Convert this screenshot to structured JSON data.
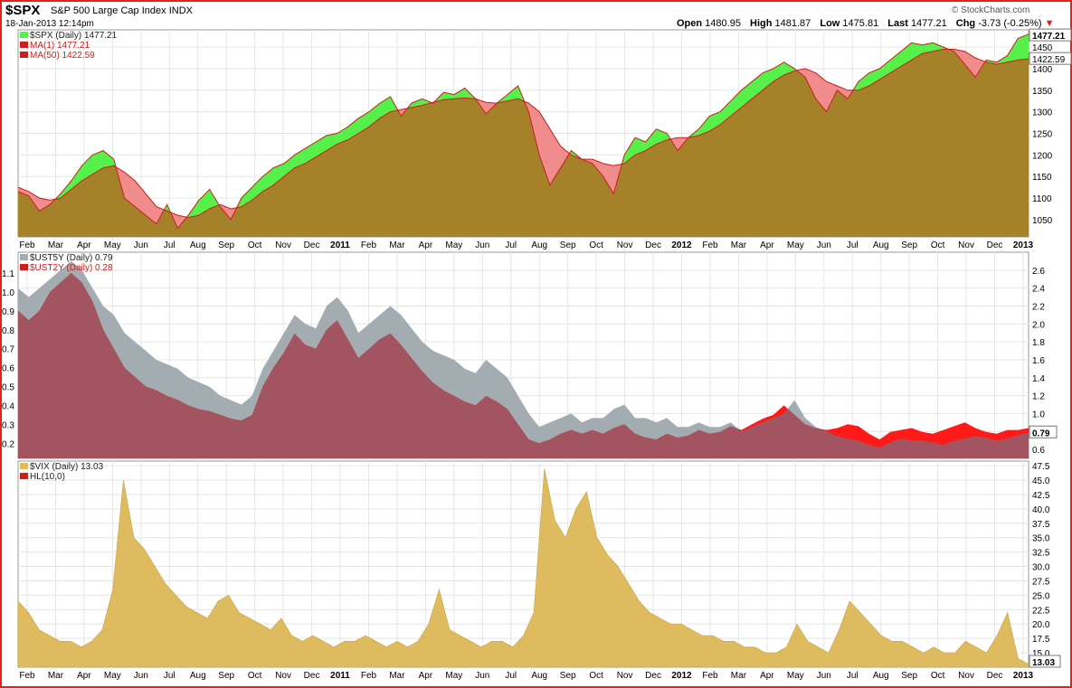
{
  "header": {
    "symbol": "$SPX",
    "name": "S&P 500 Large Cap Index",
    "exchange": "INDX",
    "datetime": "18-Jan-2013 12:14pm",
    "brand": "© StockCharts.com",
    "quote": {
      "open_label": "Open",
      "open": "1480.95",
      "high_label": "High",
      "high": "1481.87",
      "low_label": "Low",
      "low": "1475.81",
      "last_label": "Last",
      "last": "1477.21",
      "chg_label": "Chg",
      "chg": "-3.73 (-0.25%)"
    }
  },
  "months": [
    "Feb",
    "Mar",
    "Apr",
    "May",
    "Jun",
    "Jul",
    "Aug",
    "Sep",
    "Oct",
    "Nov",
    "Dec",
    "2011",
    "Feb",
    "Mar",
    "Apr",
    "May",
    "Jun",
    "Jul",
    "Aug",
    "Sep",
    "Oct",
    "Nov",
    "Dec",
    "2012",
    "Feb",
    "Mar",
    "Apr",
    "May",
    "Jun",
    "Jul",
    "Aug",
    "Sep",
    "Oct",
    "Nov",
    "Dec",
    "2013"
  ],
  "colors": {
    "price_fill": "#a5822a",
    "above": "#55f04a",
    "below": "#f08c8c",
    "ust5": "#a3acb0",
    "ust2": "#a25560",
    "ust2_excess": "#ff1a1a",
    "vix": "#dfbb5f",
    "line": "#c8201c"
  },
  "chart_data": [
    {
      "type": "area",
      "title": "$SPX (Daily) 1477.21",
      "legend": [
        {
          "label": "$SPX (Daily) 1477.21",
          "color": "#55f04a"
        },
        {
          "label": "MA(1) 1477.21",
          "color": "#c8201c"
        },
        {
          "label": "MA(50) 1422.59",
          "color": "#c8201c"
        }
      ],
      "ylim": [
        1010,
        1490
      ],
      "yticks": [
        1050,
        1100,
        1150,
        1200,
        1250,
        1300,
        1350,
        1400,
        1450
      ],
      "last_labels": [
        {
          "text": "1477.21",
          "value": 1477.21,
          "bold": true
        },
        {
          "text": "1422.59",
          "value": 1422.59,
          "bold": false
        }
      ],
      "series": [
        {
          "name": "$SPX",
          "values": [
            1115,
            1105,
            1070,
            1085,
            1110,
            1140,
            1175,
            1200,
            1210,
            1190,
            1100,
            1080,
            1060,
            1040,
            1085,
            1030,
            1060,
            1095,
            1120,
            1080,
            1050,
            1100,
            1125,
            1150,
            1170,
            1180,
            1200,
            1215,
            1230,
            1245,
            1250,
            1265,
            1285,
            1300,
            1320,
            1335,
            1290,
            1320,
            1330,
            1320,
            1345,
            1340,
            1355,
            1330,
            1295,
            1320,
            1340,
            1360,
            1300,
            1200,
            1130,
            1170,
            1210,
            1190,
            1180,
            1150,
            1110,
            1200,
            1240,
            1230,
            1260,
            1250,
            1210,
            1240,
            1260,
            1290,
            1300,
            1325,
            1350,
            1370,
            1390,
            1400,
            1415,
            1400,
            1380,
            1330,
            1300,
            1350,
            1330,
            1370,
            1390,
            1400,
            1420,
            1440,
            1460,
            1455,
            1460,
            1450,
            1440,
            1410,
            1380,
            1420,
            1415,
            1430,
            1470,
            1480
          ]
        },
        {
          "name": "MA(50)",
          "values": [
            1125,
            1115,
            1100,
            1095,
            1100,
            1120,
            1140,
            1155,
            1170,
            1175,
            1160,
            1140,
            1110,
            1080,
            1070,
            1060,
            1055,
            1060,
            1075,
            1085,
            1075,
            1080,
            1095,
            1115,
            1130,
            1150,
            1170,
            1180,
            1195,
            1210,
            1225,
            1235,
            1250,
            1265,
            1285,
            1300,
            1305,
            1310,
            1315,
            1322,
            1328,
            1330,
            1332,
            1330,
            1322,
            1320,
            1325,
            1330,
            1320,
            1300,
            1260,
            1220,
            1200,
            1190,
            1190,
            1180,
            1175,
            1180,
            1200,
            1210,
            1225,
            1235,
            1240,
            1240,
            1245,
            1255,
            1270,
            1290,
            1310,
            1330,
            1350,
            1370,
            1385,
            1395,
            1400,
            1390,
            1370,
            1360,
            1350,
            1350,
            1360,
            1375,
            1390,
            1405,
            1420,
            1435,
            1440,
            1445,
            1445,
            1440,
            1425,
            1415,
            1410,
            1415,
            1420,
            1423
          ]
        }
      ]
    },
    {
      "type": "area",
      "title": "$UST5Y (Daily) 0.79",
      "legend": [
        {
          "label": "$UST5Y (Daily) 0.79",
          "color": "#a3acb0"
        },
        {
          "label": "$UST2Y (Daily) 0.28",
          "color": "#c8201c"
        }
      ],
      "ylim_left": [
        0.12,
        1.21
      ],
      "yticks_left": [
        0.2,
        0.3,
        0.4,
        0.5,
        0.6,
        0.7,
        0.8,
        0.9,
        1.0,
        1.1
      ],
      "ylim_right": [
        0.5,
        2.8
      ],
      "yticks_right": [
        0.6,
        0.8,
        1.0,
        1.2,
        1.4,
        1.6,
        1.8,
        2.0,
        2.2,
        2.4,
        2.6
      ],
      "last_labels": [
        {
          "text": "0.79",
          "value": 0.79,
          "bold": true
        }
      ],
      "series": [
        {
          "name": "$UST5Y",
          "axis": "right",
          "values": [
            2.4,
            2.3,
            2.4,
            2.5,
            2.6,
            2.7,
            2.6,
            2.4,
            2.2,
            2.1,
            1.9,
            1.8,
            1.7,
            1.6,
            1.55,
            1.5,
            1.4,
            1.35,
            1.3,
            1.2,
            1.15,
            1.1,
            1.2,
            1.5,
            1.7,
            1.9,
            2.1,
            2.0,
            1.95,
            2.2,
            2.3,
            2.15,
            1.9,
            2.0,
            2.1,
            2.2,
            2.1,
            1.95,
            1.8,
            1.7,
            1.65,
            1.6,
            1.5,
            1.45,
            1.6,
            1.5,
            1.4,
            1.2,
            1.0,
            0.85,
            0.9,
            0.95,
            1.0,
            0.9,
            0.95,
            0.95,
            1.05,
            1.1,
            0.95,
            0.95,
            0.9,
            0.95,
            0.85,
            0.85,
            0.9,
            0.85,
            0.85,
            0.9,
            0.8,
            0.85,
            0.9,
            0.95,
            1.0,
            1.15,
            0.95,
            0.85,
            0.8,
            0.75,
            0.72,
            0.7,
            0.65,
            0.62,
            0.68,
            0.72,
            0.7,
            0.7,
            0.68,
            0.65,
            0.7,
            0.72,
            0.75,
            0.73,
            0.7,
            0.72,
            0.76,
            0.79
          ]
        },
        {
          "name": "$UST2Y",
          "axis": "left",
          "values": [
            0.9,
            0.85,
            0.9,
            1.0,
            1.05,
            1.1,
            1.05,
            0.95,
            0.8,
            0.7,
            0.6,
            0.55,
            0.5,
            0.48,
            0.45,
            0.43,
            0.4,
            0.38,
            0.37,
            0.35,
            0.33,
            0.32,
            0.35,
            0.5,
            0.6,
            0.68,
            0.78,
            0.72,
            0.7,
            0.8,
            0.85,
            0.75,
            0.65,
            0.7,
            0.75,
            0.78,
            0.72,
            0.65,
            0.58,
            0.52,
            0.48,
            0.45,
            0.42,
            0.4,
            0.45,
            0.42,
            0.38,
            0.3,
            0.22,
            0.2,
            0.22,
            0.25,
            0.27,
            0.25,
            0.27,
            0.25,
            0.28,
            0.3,
            0.25,
            0.23,
            0.22,
            0.25,
            0.23,
            0.24,
            0.27,
            0.25,
            0.26,
            0.29,
            0.27,
            0.3,
            0.33,
            0.35,
            0.4,
            0.35,
            0.3,
            0.28,
            0.27,
            0.28,
            0.3,
            0.29,
            0.25,
            0.22,
            0.26,
            0.27,
            0.28,
            0.26,
            0.25,
            0.27,
            0.29,
            0.31,
            0.28,
            0.26,
            0.25,
            0.27,
            0.27,
            0.28
          ]
        }
      ]
    },
    {
      "type": "area",
      "title": "$VIX (Daily) 13.03",
      "legend": [
        {
          "label": "$VIX (Daily) 13.03",
          "color": "#dfbb5f"
        },
        {
          "label": "HL(10,0)",
          "color": "#c8201c"
        }
      ],
      "ylim": [
        12.5,
        48.3
      ],
      "yticks": [
        15.0,
        17.5,
        20.0,
        22.5,
        25.0,
        27.5,
        30.0,
        32.5,
        35.0,
        37.5,
        40.0,
        42.5,
        45.0,
        47.5
      ],
      "last_labels": [
        {
          "text": "13.03",
          "value": 13.03,
          "bold": true
        }
      ],
      "series": [
        {
          "name": "$VIX",
          "values": [
            24,
            22,
            19,
            18,
            17,
            17,
            16,
            17,
            19,
            26,
            45,
            35,
            33,
            30,
            27,
            25,
            23,
            22,
            21,
            24,
            25,
            22,
            21,
            20,
            19,
            21,
            18,
            17,
            18,
            17,
            16,
            17,
            17,
            18,
            17,
            16,
            17,
            16,
            17,
            20,
            26,
            19,
            18,
            17,
            16,
            17,
            17,
            16,
            18,
            22,
            47,
            38,
            35,
            40,
            43,
            35,
            32,
            30,
            27,
            24,
            22,
            21,
            20,
            20,
            19,
            18,
            18,
            17,
            17,
            16,
            16,
            15,
            15,
            16,
            20,
            17,
            16,
            15,
            19,
            24,
            22,
            20,
            18,
            17,
            17,
            16,
            15,
            16,
            15,
            15,
            17,
            16,
            15,
            18,
            22,
            14,
            13.03
          ]
        }
      ]
    }
  ]
}
